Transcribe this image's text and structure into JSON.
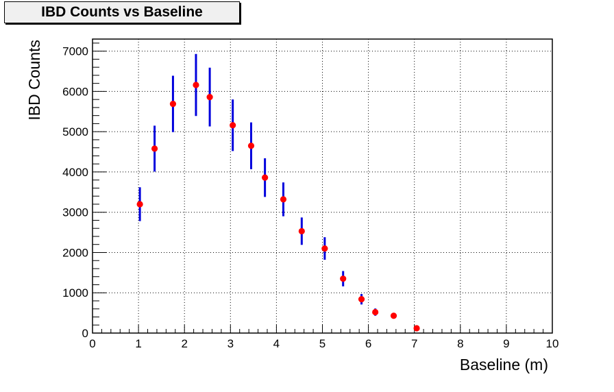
{
  "chart_data": {
    "type": "scatter",
    "title": "IBD Counts vs Baseline",
    "xlabel": "Baseline (m)",
    "ylabel": "IBD Counts",
    "xlim": [
      0,
      10
    ],
    "ylim": [
      0,
      7300
    ],
    "x_ticks": [
      0,
      1,
      2,
      3,
      4,
      5,
      6,
      7,
      8,
      9,
      10
    ],
    "y_ticks": [
      0,
      1000,
      2000,
      3000,
      4000,
      5000,
      6000,
      7000
    ],
    "grid": true,
    "legend": false,
    "marker_color": "#ff0000",
    "errorbar_color": "#0000dd",
    "series": [
      {
        "points": [
          {
            "x": 1.03,
            "y": 3200,
            "err": 420
          },
          {
            "x": 1.35,
            "y": 4580,
            "err": 570
          },
          {
            "x": 1.75,
            "y": 5690,
            "err": 700
          },
          {
            "x": 2.25,
            "y": 6160,
            "err": 770
          },
          {
            "x": 2.55,
            "y": 5860,
            "err": 730
          },
          {
            "x": 3.05,
            "y": 5160,
            "err": 640
          },
          {
            "x": 3.45,
            "y": 4650,
            "err": 580
          },
          {
            "x": 3.75,
            "y": 3860,
            "err": 480
          },
          {
            "x": 4.15,
            "y": 3320,
            "err": 420
          },
          {
            "x": 4.55,
            "y": 2530,
            "err": 340
          },
          {
            "x": 5.05,
            "y": 2100,
            "err": 280
          },
          {
            "x": 5.45,
            "y": 1350,
            "err": 190
          },
          {
            "x": 5.85,
            "y": 840,
            "err": 130
          },
          {
            "x": 6.15,
            "y": 520,
            "err": 90
          },
          {
            "x": 6.55,
            "y": 430,
            "err": 70
          },
          {
            "x": 7.05,
            "y": 120,
            "err": 30
          }
        ]
      }
    ]
  }
}
